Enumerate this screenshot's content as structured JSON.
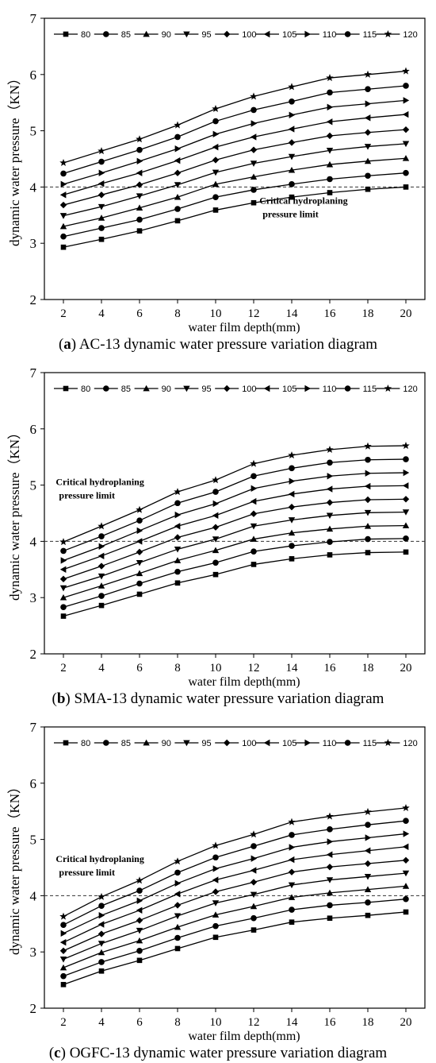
{
  "figures": [
    {
      "caption_letter": "a",
      "caption_text": " AC-13 dynamic water pressure variation diagram"
    },
    {
      "caption_letter": "b",
      "caption_text": " SMA-13 dynamic water pressure variation diagram"
    },
    {
      "caption_letter": "c",
      "caption_text": " OGFC-13 dynamic water pressure variation diagram"
    }
  ],
  "chart_data": [
    {
      "type": "line",
      "xlabel": "water film depth(mm)",
      "ylabel": "dynamic water pressure（KN）",
      "xlim": [
        1,
        21
      ],
      "ylim": [
        2,
        7
      ],
      "x": [
        2,
        4,
        6,
        8,
        10,
        12,
        14,
        16,
        18,
        20
      ],
      "x_ticks": [
        "2",
        "4",
        "6",
        "8",
        "10",
        "12",
        "14",
        "16",
        "18",
        "20"
      ],
      "y_ticks": [
        "2",
        "3",
        "4",
        "5",
        "6",
        "7"
      ],
      "threshold": 4,
      "annotation": [
        "Critical hydroplaning",
        "pressure limit"
      ],
      "annotation_anchor": {
        "x": 12.3,
        "y": 3.7
      },
      "legend_placement": "top",
      "series": [
        {
          "name": "80",
          "marker": "square",
          "values": [
            2.93,
            3.07,
            3.22,
            3.4,
            3.59,
            3.72,
            3.82,
            3.9,
            3.96,
            4.0
          ]
        },
        {
          "name": "85",
          "marker": "circle",
          "values": [
            3.12,
            3.27,
            3.42,
            3.61,
            3.82,
            3.95,
            4.05,
            4.14,
            4.2,
            4.25
          ]
        },
        {
          "name": "90",
          "marker": "triangle-up",
          "values": [
            3.3,
            3.45,
            3.63,
            3.82,
            4.05,
            4.18,
            4.3,
            4.4,
            4.46,
            4.51
          ]
        },
        {
          "name": "95",
          "marker": "triangle-down",
          "values": [
            3.49,
            3.65,
            3.84,
            4.04,
            4.26,
            4.42,
            4.54,
            4.65,
            4.72,
            4.77
          ]
        },
        {
          "name": "100",
          "marker": "diamond",
          "values": [
            3.68,
            3.86,
            4.04,
            4.25,
            4.48,
            4.66,
            4.79,
            4.91,
            4.97,
            5.02
          ]
        },
        {
          "name": "105",
          "marker": "triangle-left",
          "values": [
            3.86,
            4.06,
            4.25,
            4.47,
            4.71,
            4.89,
            5.03,
            5.16,
            5.23,
            5.29
          ]
        },
        {
          "name": "110",
          "marker": "triangle-right",
          "values": [
            4.05,
            4.25,
            4.46,
            4.68,
            4.94,
            5.13,
            5.28,
            5.42,
            5.48,
            5.54
          ]
        },
        {
          "name": "115",
          "marker": "circle",
          "values": [
            4.24,
            4.45,
            4.66,
            4.89,
            5.17,
            5.37,
            5.52,
            5.68,
            5.74,
            5.8
          ]
        },
        {
          "name": "120",
          "marker": "star",
          "values": [
            4.43,
            4.64,
            4.85,
            5.1,
            5.39,
            5.61,
            5.78,
            5.94,
            6.0,
            6.06
          ]
        }
      ]
    },
    {
      "type": "line",
      "xlabel": "water film depth(mm)",
      "ylabel": "dynamic water pressure（KN）",
      "xlim": [
        1,
        21
      ],
      "ylim": [
        2,
        7
      ],
      "x": [
        2,
        4,
        6,
        8,
        10,
        12,
        14,
        16,
        18,
        20
      ],
      "x_ticks": [
        "2",
        "4",
        "6",
        "8",
        "10",
        "12",
        "14",
        "16",
        "18",
        "20"
      ],
      "y_ticks": [
        "2",
        "3",
        "4",
        "5",
        "6",
        "7"
      ],
      "threshold": 4,
      "annotation": [
        "Critical hydroplaning",
        "pressure limit"
      ],
      "annotation_anchor": {
        "x": 1.6,
        "y": 5.0
      },
      "legend_placement": "top",
      "series": [
        {
          "name": "80",
          "marker": "square",
          "values": [
            2.67,
            2.86,
            3.06,
            3.26,
            3.41,
            3.59,
            3.69,
            3.76,
            3.8,
            3.81
          ]
        },
        {
          "name": "85",
          "marker": "circle",
          "values": [
            2.83,
            3.03,
            3.25,
            3.46,
            3.62,
            3.82,
            3.92,
            3.99,
            4.04,
            4.05
          ]
        },
        {
          "name": "90",
          "marker": "triangle-up",
          "values": [
            3.0,
            3.21,
            3.43,
            3.66,
            3.84,
            4.04,
            4.15,
            4.22,
            4.27,
            4.28
          ]
        },
        {
          "name": "95",
          "marker": "triangle-down",
          "values": [
            3.17,
            3.38,
            3.62,
            3.86,
            4.04,
            4.27,
            4.38,
            4.46,
            4.51,
            4.52
          ]
        },
        {
          "name": "100",
          "marker": "diamond",
          "values": [
            3.33,
            3.56,
            3.81,
            4.07,
            4.25,
            4.49,
            4.61,
            4.69,
            4.74,
            4.75
          ]
        },
        {
          "name": "105",
          "marker": "triangle-left",
          "values": [
            3.5,
            3.74,
            4.0,
            4.27,
            4.46,
            4.71,
            4.84,
            4.93,
            4.98,
            4.99
          ]
        },
        {
          "name": "110",
          "marker": "triangle-right",
          "values": [
            3.66,
            3.91,
            4.19,
            4.47,
            4.67,
            4.94,
            5.07,
            5.16,
            5.21,
            5.22
          ]
        },
        {
          "name": "115",
          "marker": "circle",
          "values": [
            3.83,
            4.09,
            4.37,
            4.68,
            4.88,
            5.16,
            5.3,
            5.4,
            5.45,
            5.46
          ]
        },
        {
          "name": "120",
          "marker": "star",
          "values": [
            3.99,
            4.27,
            4.56,
            4.88,
            5.09,
            5.38,
            5.53,
            5.63,
            5.69,
            5.7
          ]
        }
      ]
    },
    {
      "type": "line",
      "xlabel": "water film depth(mm)",
      "ylabel": "dynamic water pressure（KN）",
      "xlim": [
        1,
        21
      ],
      "ylim": [
        2,
        7
      ],
      "x": [
        2,
        4,
        6,
        8,
        10,
        12,
        14,
        16,
        18,
        20
      ],
      "x_ticks": [
        "2",
        "4",
        "6",
        "8",
        "10",
        "12",
        "14",
        "16",
        "18",
        "20"
      ],
      "y_ticks": [
        "2",
        "3",
        "4",
        "5",
        "6",
        "7"
      ],
      "threshold": 4,
      "annotation": [
        "Critical hydroplaning",
        "pressure limit"
      ],
      "annotation_anchor": {
        "x": 1.6,
        "y": 4.6
      },
      "legend_placement": "top",
      "series": [
        {
          "name": "80",
          "marker": "square",
          "values": [
            2.42,
            2.66,
            2.85,
            3.06,
            3.26,
            3.39,
            3.53,
            3.6,
            3.65,
            3.71
          ]
        },
        {
          "name": "85",
          "marker": "circle",
          "values": [
            2.57,
            2.82,
            3.02,
            3.25,
            3.46,
            3.6,
            3.75,
            3.83,
            3.88,
            3.94
          ]
        },
        {
          "name": "90",
          "marker": "triangle-up",
          "values": [
            2.72,
            2.99,
            3.2,
            3.44,
            3.66,
            3.81,
            3.97,
            4.05,
            4.11,
            4.17
          ]
        },
        {
          "name": "95",
          "marker": "triangle-down",
          "values": [
            2.87,
            3.15,
            3.38,
            3.64,
            3.87,
            4.02,
            4.19,
            4.28,
            4.34,
            4.4
          ]
        },
        {
          "name": "100",
          "marker": "diamond",
          "values": [
            3.02,
            3.32,
            3.56,
            3.83,
            4.07,
            4.24,
            4.42,
            4.51,
            4.57,
            4.63
          ]
        },
        {
          "name": "105",
          "marker": "triangle-left",
          "values": [
            3.17,
            3.49,
            3.74,
            4.03,
            4.28,
            4.45,
            4.64,
            4.73,
            4.8,
            4.87
          ]
        },
        {
          "name": "110",
          "marker": "triangle-right",
          "values": [
            3.33,
            3.65,
            3.91,
            4.22,
            4.48,
            4.66,
            4.86,
            4.96,
            5.03,
            5.1
          ]
        },
        {
          "name": "115",
          "marker": "circle",
          "values": [
            3.48,
            3.82,
            4.09,
            4.41,
            4.68,
            4.88,
            5.08,
            5.18,
            5.26,
            5.33
          ]
        },
        {
          "name": "120",
          "marker": "star",
          "values": [
            3.63,
            3.98,
            4.27,
            4.61,
            4.89,
            5.09,
            5.31,
            5.41,
            5.49,
            5.56
          ]
        }
      ]
    }
  ]
}
